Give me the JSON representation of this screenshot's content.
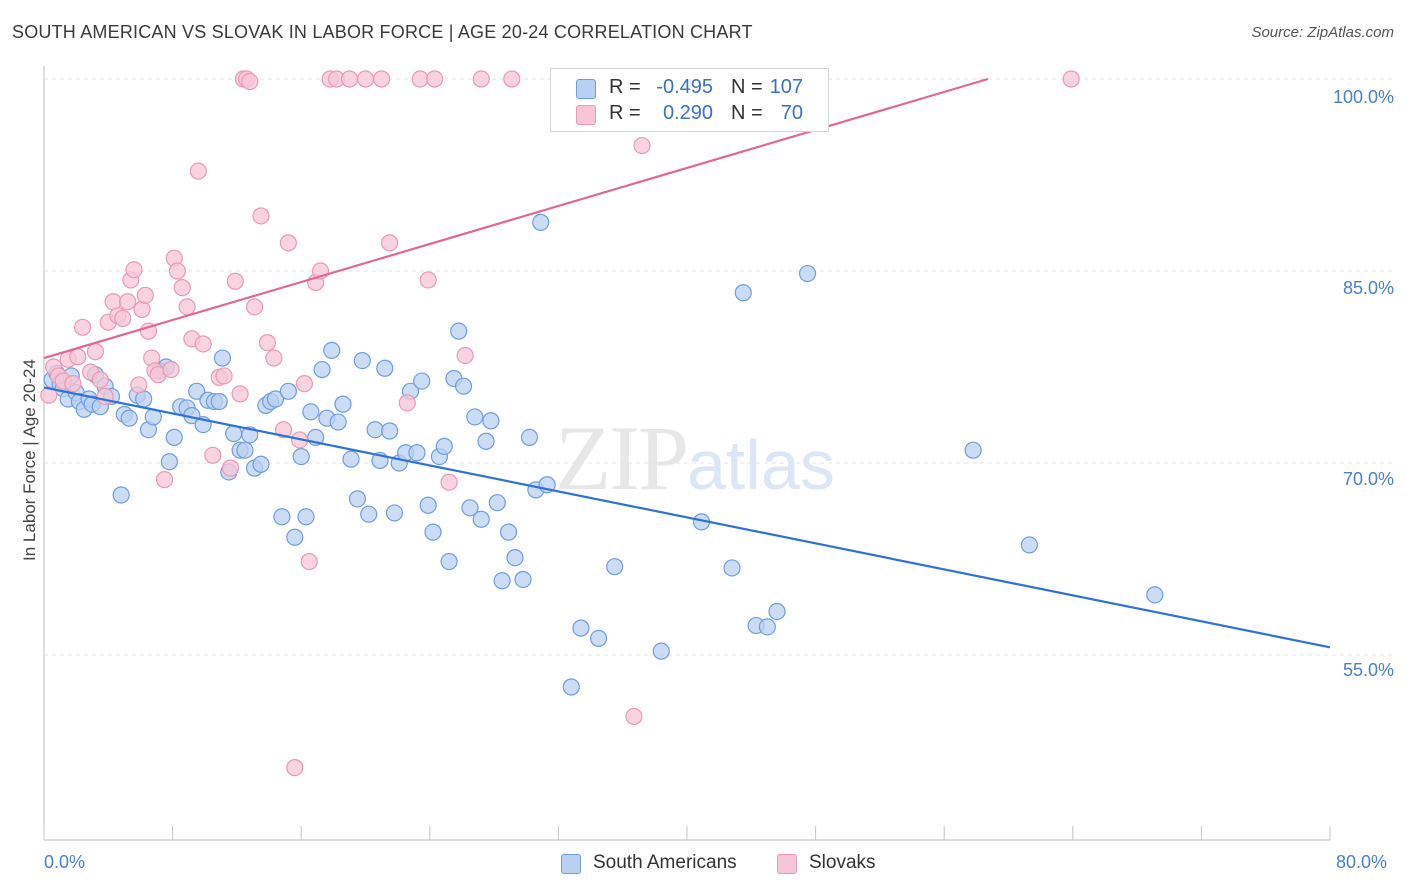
{
  "header": {
    "title": "SOUTH AMERICAN VS SLOVAK IN LABOR FORCE | AGE 20-24 CORRELATION CHART",
    "source": "Source: ZipAtlas.com"
  },
  "watermark": {
    "zip": "ZIP",
    "atlas": "atlas"
  },
  "legend": {
    "rows": [
      {
        "r_label": "R =",
        "r_value": "-0.495",
        "n_label": "N =",
        "n_value": "107"
      },
      {
        "r_label": "R =",
        "r_value": "0.290",
        "n_label": "N =",
        "n_value": "70"
      }
    ]
  },
  "bottom_legend": {
    "series1": "South Americans",
    "series2": "Slovaks"
  },
  "colors": {
    "blue_fill": "#b9d0f0",
    "blue_stroke": "#6f9ee0",
    "blue_line": "#2f72d6",
    "pink_fill": "#f7c6d6",
    "pink_stroke": "#e99ab4",
    "pink_line": "#e06892",
    "tick_text": "#4a7fd4",
    "grid": "#e3e3e3"
  },
  "chart_data": {
    "type": "scatter",
    "title": "SOUTH AMERICAN VS SLOVAK IN LABOR FORCE | AGE 20-24 CORRELATION CHART",
    "xlabel": "",
    "ylabel": "In Labor Force | Age 20-24",
    "xlim": [
      0,
      80
    ],
    "ylim": [
      42,
      102
    ],
    "x_tick_labels": [
      "0.0%",
      "80.0%"
    ],
    "y_ticks": [
      55,
      70,
      85,
      100
    ],
    "y_tick_labels": [
      "55.0%",
      "70.0%",
      "85.0%",
      "100.0%"
    ],
    "grid": true,
    "legend_position": "top-center",
    "series": [
      {
        "name": "South Americans",
        "R": -0.495,
        "N": 107,
        "trend": {
          "x": [
            0,
            80
          ],
          "y": [
            75.9,
            55.6
          ]
        },
        "points": [
          [
            0.5,
            76.5
          ],
          [
            0.8,
            77
          ],
          [
            1,
            76.2
          ],
          [
            1.2,
            75.8
          ],
          [
            1.5,
            75
          ],
          [
            1.7,
            76.8
          ],
          [
            2,
            75.5
          ],
          [
            2.2,
            74.8
          ],
          [
            2.5,
            74.2
          ],
          [
            2.8,
            75
          ],
          [
            3,
            74.6
          ],
          [
            3.2,
            76.9
          ],
          [
            3.5,
            74.4
          ],
          [
            3.8,
            76
          ],
          [
            4.2,
            75.2
          ],
          [
            4.8,
            67.5
          ],
          [
            5,
            73.8
          ],
          [
            5.3,
            73.5
          ],
          [
            5.8,
            75.3
          ],
          [
            6.2,
            75
          ],
          [
            6.5,
            72.6
          ],
          [
            6.8,
            73.6
          ],
          [
            7.2,
            77.2
          ],
          [
            7.6,
            77.5
          ],
          [
            7.8,
            70.1
          ],
          [
            8.1,
            72
          ],
          [
            8.5,
            74.4
          ],
          [
            8.9,
            74.3
          ],
          [
            9.2,
            73.7
          ],
          [
            9.5,
            75.6
          ],
          [
            9.9,
            73
          ],
          [
            10.2,
            74.9
          ],
          [
            10.6,
            74.8
          ],
          [
            10.9,
            74.8
          ],
          [
            11.1,
            78.2
          ],
          [
            11.5,
            69.3
          ],
          [
            11.8,
            72.3
          ],
          [
            12.2,
            71
          ],
          [
            12.5,
            71
          ],
          [
            12.8,
            72.2
          ],
          [
            13.1,
            69.6
          ],
          [
            13.5,
            69.9
          ],
          [
            13.8,
            74.5
          ],
          [
            14.1,
            74.8
          ],
          [
            14.4,
            75
          ],
          [
            14.8,
            65.8
          ],
          [
            15.2,
            75.6
          ],
          [
            15.6,
            64.2
          ],
          [
            16,
            70.5
          ],
          [
            16.3,
            65.8
          ],
          [
            16.6,
            74
          ],
          [
            16.9,
            72
          ],
          [
            17.3,
            77.3
          ],
          [
            17.6,
            73.5
          ],
          [
            17.9,
            78.8
          ],
          [
            18.3,
            73.2
          ],
          [
            18.6,
            74.6
          ],
          [
            19.1,
            70.3
          ],
          [
            19.5,
            67.2
          ],
          [
            19.8,
            78
          ],
          [
            20.2,
            66
          ],
          [
            20.6,
            72.6
          ],
          [
            20.9,
            70.2
          ],
          [
            21.2,
            77.4
          ],
          [
            21.5,
            72.5
          ],
          [
            21.8,
            66.1
          ],
          [
            22.1,
            70
          ],
          [
            22.5,
            70.8
          ],
          [
            22.8,
            75.6
          ],
          [
            23.2,
            70.8
          ],
          [
            23.5,
            76.4
          ],
          [
            23.9,
            66.7
          ],
          [
            24.2,
            64.6
          ],
          [
            24.6,
            70.5
          ],
          [
            24.9,
            71.3
          ],
          [
            25.2,
            62.3
          ],
          [
            25.5,
            76.6
          ],
          [
            25.8,
            80.3
          ],
          [
            26.1,
            76
          ],
          [
            26.5,
            66.5
          ],
          [
            26.8,
            73.6
          ],
          [
            27.2,
            65.6
          ],
          [
            27.5,
            71.7
          ],
          [
            27.8,
            73.3
          ],
          [
            28.2,
            66.9
          ],
          [
            28.5,
            60.8
          ],
          [
            28.9,
            64.6
          ],
          [
            29.3,
            62.6
          ],
          [
            29.8,
            60.9
          ],
          [
            30.2,
            72
          ],
          [
            30.6,
            67.9
          ],
          [
            30.9,
            88.8
          ],
          [
            31.3,
            68.3
          ],
          [
            32.8,
            52.5
          ],
          [
            33.4,
            57.1
          ],
          [
            34.5,
            56.3
          ],
          [
            35.5,
            61.9
          ],
          [
            38.4,
            55.3
          ],
          [
            40.9,
            65.4
          ],
          [
            42.8,
            61.8
          ],
          [
            43.5,
            83.3
          ],
          [
            44.3,
            57.3
          ],
          [
            45,
            57.2
          ],
          [
            45.6,
            58.4
          ],
          [
            47.5,
            84.8
          ],
          [
            57.8,
            71
          ],
          [
            61.3,
            63.6
          ],
          [
            69.1,
            59.7
          ]
        ]
      },
      {
        "name": "Slovaks",
        "R": 0.29,
        "N": 70,
        "trend": {
          "x": [
            0,
            80
          ],
          "y": [
            78.2,
            107.9
          ]
        },
        "points": [
          [
            0.3,
            75.3
          ],
          [
            0.6,
            77.5
          ],
          [
            0.9,
            76.8
          ],
          [
            1.2,
            76.4
          ],
          [
            1.5,
            78.1
          ],
          [
            1.8,
            76.2
          ],
          [
            2.1,
            78.3
          ],
          [
            2.4,
            80.6
          ],
          [
            2.9,
            77.1
          ],
          [
            3.2,
            78.7
          ],
          [
            3.5,
            76.5
          ],
          [
            3.8,
            75.2
          ],
          [
            4,
            81
          ],
          [
            4.3,
            82.6
          ],
          [
            4.6,
            81.5
          ],
          [
            4.9,
            81.3
          ],
          [
            5.2,
            82.6
          ],
          [
            5.4,
            84.3
          ],
          [
            5.6,
            85.1
          ],
          [
            5.9,
            76.1
          ],
          [
            6.1,
            82
          ],
          [
            6.3,
            83.1
          ],
          [
            6.5,
            80.3
          ],
          [
            6.7,
            78.2
          ],
          [
            6.9,
            77.2
          ],
          [
            7.1,
            76.9
          ],
          [
            7.5,
            68.7
          ],
          [
            7.9,
            77.3
          ],
          [
            8.1,
            86
          ],
          [
            8.3,
            85
          ],
          [
            8.6,
            83.7
          ],
          [
            8.9,
            82.2
          ],
          [
            9.2,
            79.7
          ],
          [
            9.6,
            92.8
          ],
          [
            9.9,
            79.3
          ],
          [
            10.5,
            70.6
          ],
          [
            10.9,
            76.7
          ],
          [
            11.2,
            76.8
          ],
          [
            11.6,
            69.6
          ],
          [
            11.9,
            84.2
          ],
          [
            12.2,
            75.4
          ],
          [
            12.4,
            100
          ],
          [
            12.6,
            100
          ],
          [
            12.8,
            99.8
          ],
          [
            13.1,
            82.2
          ],
          [
            13.5,
            89.3
          ],
          [
            13.9,
            79.4
          ],
          [
            14.3,
            78.2
          ],
          [
            14.9,
            72.6
          ],
          [
            15.2,
            87.2
          ],
          [
            15.6,
            46.2
          ],
          [
            15.9,
            71.8
          ],
          [
            16.2,
            76.2
          ],
          [
            16.5,
            62.3
          ],
          [
            16.9,
            84.1
          ],
          [
            17.2,
            85
          ],
          [
            17.8,
            100
          ],
          [
            18.2,
            100
          ],
          [
            19,
            100
          ],
          [
            20,
            100
          ],
          [
            21,
            100
          ],
          [
            21.5,
            87.2
          ],
          [
            22.6,
            74.7
          ],
          [
            23.4,
            100
          ],
          [
            23.9,
            84.3
          ],
          [
            24.3,
            100
          ],
          [
            25.2,
            68.5
          ],
          [
            26.2,
            78.4
          ],
          [
            27.2,
            100
          ],
          [
            29.1,
            100
          ],
          [
            36.7,
            50.2
          ],
          [
            37.2,
            94.8
          ],
          [
            63.9,
            100
          ]
        ]
      }
    ]
  }
}
